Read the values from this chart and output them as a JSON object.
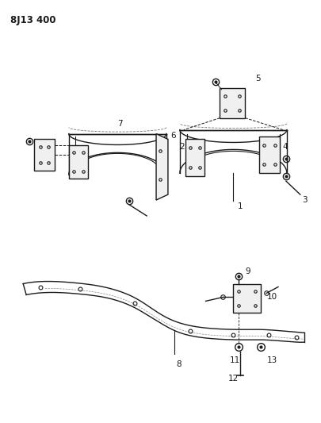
{
  "title_code": "8J13 400",
  "bg_color": "#ffffff",
  "fg_color": "#1a1a1a",
  "figsize": [
    4.06,
    5.33
  ],
  "dpi": 100
}
